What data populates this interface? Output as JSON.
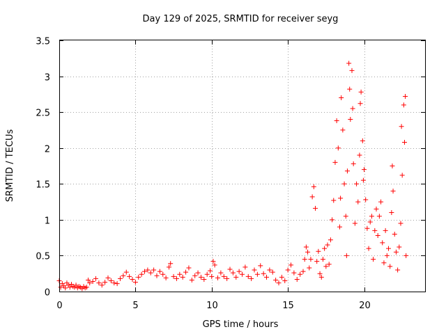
{
  "chart_data": {
    "type": "scatter",
    "title": "Day 129 of 2025, SRMTID for receiver seyg",
    "xlabel": "GPS time / hours",
    "ylabel": "SRMTID / TECUs",
    "xlim": [
      0,
      24
    ],
    "ylim": [
      0,
      3.5
    ],
    "xticks": [
      "0",
      "5",
      "10",
      "15",
      "20"
    ],
    "yticks": [
      "0",
      "0.5",
      "1",
      "1.5",
      "2",
      "2.5",
      "3",
      "3.5"
    ],
    "grid": true,
    "marker": "+",
    "color": "#ff0000",
    "series": [
      {
        "name": "SRMTID",
        "points": [
          [
            0.0,
            0.15
          ],
          [
            0.1,
            0.06
          ],
          [
            0.2,
            0.11
          ],
          [
            0.3,
            0.08
          ],
          [
            0.4,
            0.05
          ],
          [
            0.5,
            0.12
          ],
          [
            0.6,
            0.09
          ],
          [
            0.7,
            0.06
          ],
          [
            0.8,
            0.1
          ],
          [
            0.9,
            0.07
          ],
          [
            1.0,
            0.06
          ],
          [
            1.1,
            0.09
          ],
          [
            1.2,
            0.05
          ],
          [
            1.3,
            0.07
          ],
          [
            1.4,
            0.06
          ],
          [
            1.5,
            0.04
          ],
          [
            1.6,
            0.07
          ],
          [
            1.7,
            0.05
          ],
          [
            1.8,
            0.06
          ],
          [
            1.9,
            0.16
          ],
          [
            2.0,
            0.12
          ],
          [
            2.2,
            0.14
          ],
          [
            2.4,
            0.18
          ],
          [
            2.6,
            0.12
          ],
          [
            2.8,
            0.09
          ],
          [
            3.0,
            0.13
          ],
          [
            3.2,
            0.19
          ],
          [
            3.4,
            0.15
          ],
          [
            3.6,
            0.12
          ],
          [
            3.8,
            0.11
          ],
          [
            4.0,
            0.18
          ],
          [
            4.2,
            0.22
          ],
          [
            4.4,
            0.27
          ],
          [
            4.6,
            0.21
          ],
          [
            4.8,
            0.17
          ],
          [
            5.0,
            0.13
          ],
          [
            5.2,
            0.2
          ],
          [
            5.4,
            0.24
          ],
          [
            5.6,
            0.28
          ],
          [
            5.8,
            0.3
          ],
          [
            6.0,
            0.26
          ],
          [
            6.2,
            0.3
          ],
          [
            6.4,
            0.22
          ],
          [
            6.6,
            0.28
          ],
          [
            6.8,
            0.24
          ],
          [
            7.0,
            0.19
          ],
          [
            7.2,
            0.34
          ],
          [
            7.3,
            0.39
          ],
          [
            7.5,
            0.21
          ],
          [
            7.7,
            0.18
          ],
          [
            7.9,
            0.24
          ],
          [
            8.1,
            0.2
          ],
          [
            8.3,
            0.27
          ],
          [
            8.5,
            0.33
          ],
          [
            8.7,
            0.16
          ],
          [
            8.9,
            0.22
          ],
          [
            9.1,
            0.26
          ],
          [
            9.3,
            0.2
          ],
          [
            9.5,
            0.17
          ],
          [
            9.7,
            0.24
          ],
          [
            9.9,
            0.29
          ],
          [
            10.0,
            0.21
          ],
          [
            10.1,
            0.42
          ],
          [
            10.2,
            0.37
          ],
          [
            10.4,
            0.19
          ],
          [
            10.6,
            0.26
          ],
          [
            10.8,
            0.21
          ],
          [
            11.0,
            0.18
          ],
          [
            11.2,
            0.31
          ],
          [
            11.4,
            0.26
          ],
          [
            11.6,
            0.2
          ],
          [
            11.8,
            0.28
          ],
          [
            12.0,
            0.24
          ],
          [
            12.2,
            0.34
          ],
          [
            12.4,
            0.21
          ],
          [
            12.6,
            0.18
          ],
          [
            12.8,
            0.3
          ],
          [
            13.0,
            0.24
          ],
          [
            13.2,
            0.36
          ],
          [
            13.4,
            0.25
          ],
          [
            13.6,
            0.2
          ],
          [
            13.8,
            0.3
          ],
          [
            14.0,
            0.27
          ],
          [
            14.2,
            0.16
          ],
          [
            14.4,
            0.12
          ],
          [
            14.6,
            0.2
          ],
          [
            14.8,
            0.15
          ],
          [
            15.0,
            0.3
          ],
          [
            15.2,
            0.37
          ],
          [
            15.4,
            0.26
          ],
          [
            15.6,
            0.17
          ],
          [
            15.8,
            0.24
          ],
          [
            16.0,
            0.28
          ],
          [
            16.1,
            0.45
          ],
          [
            16.2,
            0.62
          ],
          [
            16.3,
            0.55
          ],
          [
            16.4,
            0.33
          ],
          [
            16.5,
            0.45
          ],
          [
            16.6,
            1.32
          ],
          [
            16.7,
            1.46
          ],
          [
            16.8,
            1.16
          ],
          [
            16.9,
            0.42
          ],
          [
            17.0,
            0.56
          ],
          [
            17.1,
            0.25
          ],
          [
            17.2,
            0.2
          ],
          [
            17.3,
            0.45
          ],
          [
            17.4,
            0.6
          ],
          [
            17.5,
            0.35
          ],
          [
            17.6,
            0.65
          ],
          [
            17.7,
            0.38
          ],
          [
            17.8,
            0.72
          ],
          [
            17.9,
            1.0
          ],
          [
            18.0,
            1.27
          ],
          [
            18.1,
            1.8
          ],
          [
            18.2,
            2.38
          ],
          [
            18.3,
            2.0
          ],
          [
            18.4,
            0.9
          ],
          [
            18.45,
            1.3
          ],
          [
            18.5,
            2.7
          ],
          [
            18.6,
            2.25
          ],
          [
            18.7,
            1.5
          ],
          [
            18.8,
            1.05
          ],
          [
            18.85,
            0.5
          ],
          [
            18.9,
            1.68
          ],
          [
            19.0,
            3.18
          ],
          [
            19.05,
            2.82
          ],
          [
            19.1,
            2.4
          ],
          [
            19.2,
            3.08
          ],
          [
            19.25,
            2.55
          ],
          [
            19.3,
            1.78
          ],
          [
            19.4,
            0.95
          ],
          [
            19.5,
            1.5
          ],
          [
            19.6,
            1.25
          ],
          [
            19.7,
            1.9
          ],
          [
            19.75,
            2.62
          ],
          [
            19.8,
            2.78
          ],
          [
            19.9,
            2.1
          ],
          [
            19.95,
            1.55
          ],
          [
            20.0,
            1.7
          ],
          [
            20.1,
            1.28
          ],
          [
            20.2,
            0.88
          ],
          [
            20.3,
            0.6
          ],
          [
            20.4,
            0.97
          ],
          [
            20.5,
            1.05
          ],
          [
            20.6,
            0.45
          ],
          [
            20.7,
            0.85
          ],
          [
            20.8,
            1.15
          ],
          [
            20.9,
            0.78
          ],
          [
            21.0,
            1.05
          ],
          [
            21.1,
            1.25
          ],
          [
            21.2,
            0.68
          ],
          [
            21.3,
            0.4
          ],
          [
            21.4,
            0.85
          ],
          [
            21.5,
            0.5
          ],
          [
            21.6,
            0.6
          ],
          [
            21.7,
            0.35
          ],
          [
            21.8,
            1.1
          ],
          [
            21.85,
            1.75
          ],
          [
            21.9,
            1.4
          ],
          [
            22.0,
            0.8
          ],
          [
            22.1,
            0.55
          ],
          [
            22.2,
            0.3
          ],
          [
            22.3,
            0.62
          ],
          [
            22.4,
            0.95
          ],
          [
            22.45,
            2.3
          ],
          [
            22.5,
            1.62
          ],
          [
            22.6,
            2.6
          ],
          [
            22.65,
            2.08
          ],
          [
            22.7,
            2.72
          ],
          [
            22.75,
            0.5
          ]
        ]
      }
    ]
  }
}
